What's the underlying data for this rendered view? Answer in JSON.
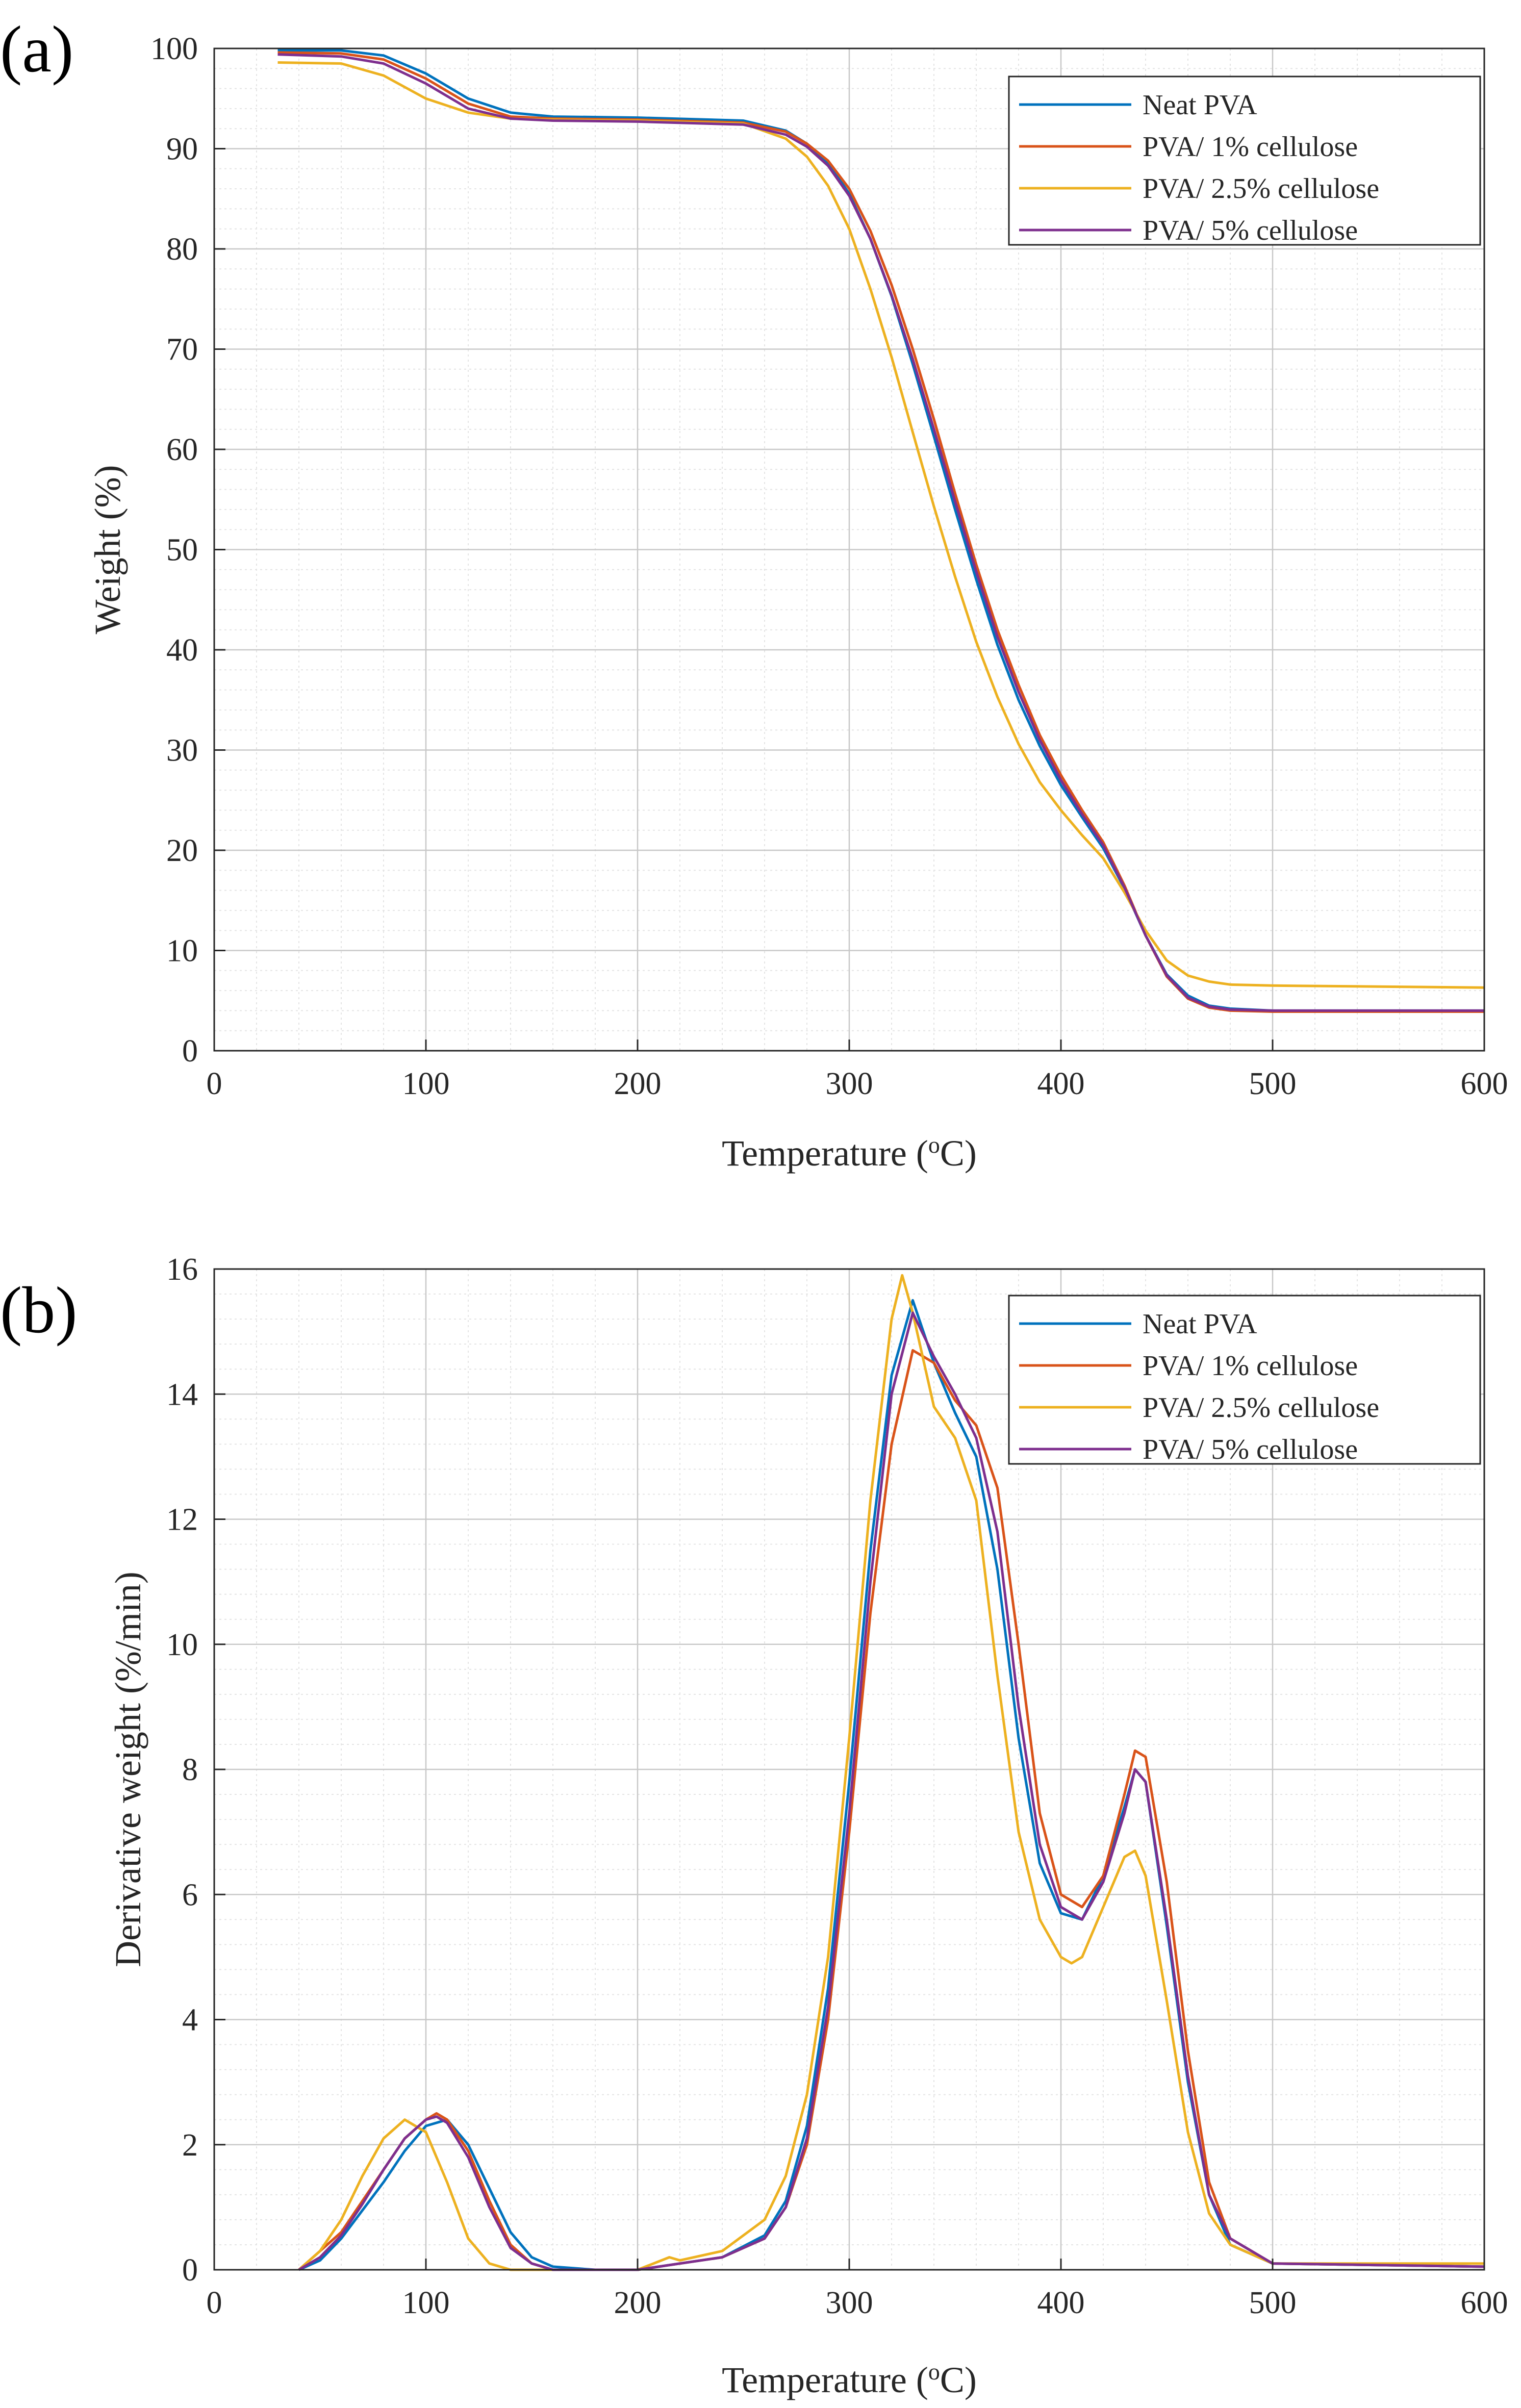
{
  "colors": {
    "neat_pva": "#0072BD",
    "pva_1": "#D95319",
    "pva_2_5": "#EDB120",
    "pva_5": "#7E2F8E",
    "grid_major": "#c8c8c8",
    "grid_minor": "#e4e4e4",
    "axis": "#262626"
  },
  "chart_data": [
    {
      "type": "line",
      "panel_label": "(a)",
      "xlabel": "Temperature (",
      "xlabel_sup": "o",
      "xlabel_end": "C)",
      "ylabel": "Weight (%)",
      "xlim": [
        0,
        600
      ],
      "ylim": [
        0,
        100
      ],
      "xticks": [
        0,
        100,
        200,
        300,
        400,
        500,
        600
      ],
      "yticks": [
        0,
        10,
        20,
        30,
        40,
        50,
        60,
        70,
        80,
        90,
        100
      ],
      "grid": true,
      "minor_grid": true,
      "legend_position": "top-right",
      "series": [
        {
          "name": "Neat PVA",
          "color_key": "neat_pva",
          "x": [
            30,
            60,
            80,
            100,
            120,
            140,
            160,
            200,
            250,
            270,
            280,
            290,
            300,
            310,
            320,
            330,
            340,
            350,
            360,
            370,
            380,
            390,
            400,
            410,
            420,
            430,
            440,
            450,
            460,
            470,
            480,
            500,
            550,
            600
          ],
          "y": [
            99.8,
            99.8,
            99.3,
            97.5,
            95.0,
            93.6,
            93.2,
            93.1,
            92.8,
            91.8,
            90.5,
            88.6,
            85.5,
            81.0,
            75.3,
            68.5,
            61.3,
            54.0,
            47.0,
            40.5,
            35.0,
            30.4,
            26.5,
            23.3,
            20.2,
            16.2,
            11.5,
            7.6,
            5.5,
            4.5,
            4.2,
            4.0,
            4.0,
            4.0
          ]
        },
        {
          "name": "PVA/ 1% cellulose",
          "color_key": "pva_1",
          "x": [
            30,
            60,
            80,
            100,
            120,
            140,
            160,
            200,
            250,
            270,
            280,
            290,
            300,
            310,
            320,
            330,
            340,
            350,
            360,
            370,
            380,
            390,
            400,
            410,
            420,
            430,
            440,
            450,
            460,
            470,
            480,
            500,
            550,
            600
          ],
          "y": [
            99.6,
            99.5,
            98.9,
            97.0,
            94.5,
            93.2,
            93.0,
            92.9,
            92.6,
            91.7,
            90.5,
            88.8,
            86.0,
            81.8,
            76.4,
            70.0,
            63.0,
            55.6,
            48.5,
            42.0,
            36.5,
            31.5,
            27.5,
            24.0,
            20.8,
            16.5,
            11.5,
            7.4,
            5.2,
            4.3,
            4.0,
            3.9,
            3.9,
            3.9
          ]
        },
        {
          "name": "PVA/ 2.5% cellulose",
          "color_key": "pva_2_5",
          "x": [
            30,
            60,
            80,
            100,
            120,
            140,
            160,
            200,
            250,
            270,
            280,
            290,
            300,
            310,
            320,
            330,
            340,
            350,
            360,
            370,
            380,
            390,
            400,
            410,
            420,
            430,
            440,
            450,
            460,
            470,
            480,
            500,
            550,
            600
          ],
          "y": [
            98.6,
            98.5,
            97.3,
            95.0,
            93.6,
            93.0,
            92.9,
            92.8,
            92.5,
            91.0,
            89.2,
            86.3,
            82.0,
            76.0,
            69.2,
            61.7,
            54.3,
            47.3,
            40.8,
            35.3,
            30.6,
            26.8,
            24.0,
            21.5,
            19.2,
            15.8,
            12.0,
            9.0,
            7.5,
            6.9,
            6.6,
            6.5,
            6.4,
            6.3
          ]
        },
        {
          "name": "PVA/ 5% cellulose",
          "color_key": "pva_5",
          "x": [
            30,
            60,
            80,
            100,
            120,
            140,
            160,
            200,
            250,
            270,
            280,
            290,
            300,
            310,
            320,
            330,
            340,
            350,
            360,
            370,
            380,
            390,
            400,
            410,
            420,
            430,
            440,
            450,
            460,
            470,
            480,
            500,
            550,
            600
          ],
          "y": [
            99.4,
            99.2,
            98.5,
            96.5,
            94.0,
            93.0,
            92.8,
            92.7,
            92.4,
            91.4,
            90.2,
            88.3,
            85.3,
            81.0,
            75.4,
            69.0,
            62.0,
            54.8,
            47.8,
            41.3,
            35.8,
            31.0,
            27.0,
            23.6,
            20.5,
            16.3,
            11.5,
            7.5,
            5.3,
            4.4,
            4.1,
            4.0,
            4.0,
            4.0
          ]
        }
      ]
    },
    {
      "type": "line",
      "panel_label": "(b)",
      "xlabel": "Temperature (",
      "xlabel_sup": "o",
      "xlabel_end": "C)",
      "ylabel": "Derivative weight (%/min)",
      "xlim": [
        0,
        600
      ],
      "ylim": [
        0,
        16
      ],
      "xticks": [
        0,
        100,
        200,
        300,
        400,
        500,
        600
      ],
      "yticks": [
        0,
        2,
        4,
        6,
        8,
        10,
        12,
        14,
        16
      ],
      "grid": true,
      "minor_grid": true,
      "legend_position": "top-right",
      "series": [
        {
          "name": "Neat PVA",
          "color_key": "neat_pva",
          "x": [
            40,
            50,
            60,
            70,
            80,
            90,
            100,
            110,
            120,
            130,
            140,
            150,
            160,
            180,
            200,
            220,
            240,
            260,
            270,
            280,
            290,
            300,
            310,
            320,
            330,
            340,
            350,
            360,
            370,
            380,
            390,
            400,
            410,
            420,
            430,
            435,
            440,
            450,
            460,
            470,
            480,
            500,
            600
          ],
          "y": [
            0.0,
            0.15,
            0.5,
            0.95,
            1.4,
            1.9,
            2.3,
            2.4,
            2.0,
            1.3,
            0.6,
            0.2,
            0.05,
            0.0,
            0.0,
            0.1,
            0.2,
            0.55,
            1.1,
            2.3,
            4.5,
            7.8,
            11.5,
            14.3,
            15.5,
            14.5,
            13.7,
            13.0,
            11.2,
            8.5,
            6.5,
            5.7,
            5.6,
            6.3,
            7.4,
            8.0,
            7.8,
            5.5,
            3.0,
            1.2,
            0.4,
            0.1,
            0.05
          ]
        },
        {
          "name": "PVA/ 1% cellulose",
          "color_key": "pva_1",
          "x": [
            40,
            50,
            60,
            70,
            80,
            90,
            100,
            105,
            110,
            120,
            130,
            140,
            150,
            160,
            180,
            200,
            220,
            240,
            260,
            270,
            280,
            290,
            300,
            310,
            320,
            330,
            340,
            350,
            360,
            370,
            380,
            390,
            400,
            410,
            420,
            430,
            435,
            440,
            450,
            460,
            470,
            480,
            500,
            600
          ],
          "y": [
            0.0,
            0.3,
            0.6,
            1.1,
            1.6,
            2.1,
            2.4,
            2.5,
            2.4,
            1.9,
            1.1,
            0.4,
            0.1,
            0.0,
            0.0,
            0.0,
            0.1,
            0.2,
            0.5,
            1.0,
            2.0,
            4.0,
            7.0,
            10.5,
            13.2,
            14.7,
            14.5,
            13.9,
            13.5,
            12.5,
            10.0,
            7.3,
            6.0,
            5.8,
            6.3,
            7.6,
            8.3,
            8.2,
            6.2,
            3.5,
            1.4,
            0.5,
            0.1,
            0.05
          ]
        },
        {
          "name": "PVA/ 2.5% cellulose",
          "color_key": "pva_2_5",
          "x": [
            40,
            50,
            60,
            70,
            80,
            90,
            100,
            110,
            120,
            130,
            140,
            160,
            200,
            215,
            220,
            240,
            260,
            270,
            280,
            290,
            300,
            310,
            320,
            325,
            330,
            340,
            350,
            360,
            370,
            380,
            390,
            400,
            405,
            410,
            420,
            430,
            435,
            440,
            450,
            460,
            470,
            480,
            500,
            580,
            600
          ],
          "y": [
            0.0,
            0.3,
            0.8,
            1.5,
            2.1,
            2.4,
            2.2,
            1.4,
            0.5,
            0.1,
            0.0,
            0.0,
            0.0,
            0.2,
            0.15,
            0.3,
            0.8,
            1.5,
            2.8,
            5.0,
            8.5,
            12.3,
            15.2,
            15.9,
            15.3,
            13.8,
            13.3,
            12.3,
            9.5,
            7.0,
            5.6,
            5.0,
            4.9,
            5.0,
            5.8,
            6.6,
            6.7,
            6.3,
            4.3,
            2.2,
            0.9,
            0.4,
            0.1,
            0.1,
            0.1
          ]
        },
        {
          "name": "PVA/ 5% cellulose",
          "color_key": "pva_5",
          "x": [
            40,
            50,
            60,
            70,
            80,
            90,
            100,
            105,
            110,
            120,
            130,
            140,
            150,
            160,
            180,
            200,
            220,
            240,
            260,
            270,
            280,
            290,
            300,
            310,
            320,
            330,
            340,
            350,
            360,
            370,
            380,
            390,
            400,
            410,
            420,
            430,
            435,
            440,
            450,
            460,
            470,
            480,
            500,
            600
          ],
          "y": [
            0.0,
            0.2,
            0.55,
            1.05,
            1.6,
            2.1,
            2.4,
            2.45,
            2.35,
            1.8,
            1.0,
            0.35,
            0.1,
            0.0,
            0.0,
            0.0,
            0.1,
            0.2,
            0.5,
            1.0,
            2.1,
            4.2,
            7.3,
            11.0,
            14.0,
            15.3,
            14.6,
            14.0,
            13.3,
            11.8,
            9.0,
            6.8,
            5.8,
            5.6,
            6.2,
            7.3,
            8.0,
            7.8,
            5.6,
            3.1,
            1.2,
            0.5,
            0.1,
            0.05
          ]
        }
      ]
    }
  ]
}
